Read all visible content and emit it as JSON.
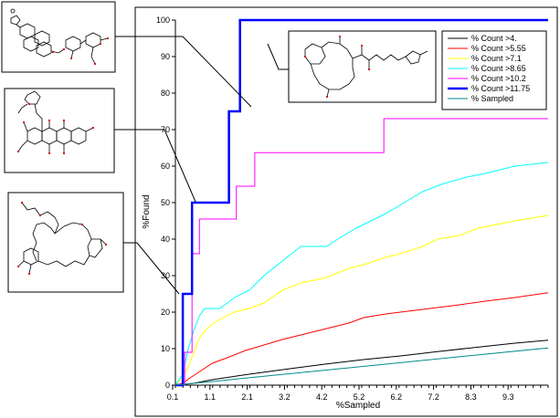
{
  "chart_data": {
    "type": "line",
    "title": "",
    "xlabel": "%Sampled",
    "ylabel": "%Found",
    "xlim": [
      0.1,
      10.2
    ],
    "ylim": [
      0,
      100
    ],
    "x_ticks": [
      "0.1",
      "1.1",
      "2.1",
      "3.2",
      "4.2",
      "5.2",
      "6.2",
      "7.2",
      "8.3",
      "9.3"
    ],
    "y_ticks": [
      0,
      10,
      20,
      30,
      40,
      50,
      60,
      70,
      80,
      90,
      100
    ],
    "legend_position": "top-right, inside plot",
    "grid": false,
    "series": [
      {
        "name": "% Count >4.",
        "color": "#000000",
        "step": false,
        "points": [
          [
            0.1,
            0
          ],
          [
            0.6,
            0.5
          ],
          [
            1.1,
            1.5
          ],
          [
            2.1,
            3
          ],
          [
            3.2,
            4.5
          ],
          [
            4.2,
            5.8
          ],
          [
            5.2,
            7
          ],
          [
            6.2,
            8
          ],
          [
            7.2,
            9.2
          ],
          [
            8.3,
            10.4
          ],
          [
            9.3,
            11.5
          ],
          [
            10.2,
            12.3
          ]
        ]
      },
      {
        "name": "% Count >5.55",
        "color": "#ff0000",
        "step": false,
        "points": [
          [
            0.1,
            0
          ],
          [
            0.3,
            0.5
          ],
          [
            0.5,
            2
          ],
          [
            0.8,
            4
          ],
          [
            1.1,
            6
          ],
          [
            1.5,
            7.5
          ],
          [
            2.0,
            9.5
          ],
          [
            2.5,
            11
          ],
          [
            3.0,
            12.5
          ],
          [
            3.6,
            14
          ],
          [
            4.2,
            15.5
          ],
          [
            4.8,
            17
          ],
          [
            5.2,
            18.5
          ],
          [
            5.8,
            19.5
          ],
          [
            6.2,
            20
          ],
          [
            7.0,
            21
          ],
          [
            7.8,
            22
          ],
          [
            8.5,
            23
          ],
          [
            9.3,
            24
          ],
          [
            10.2,
            25.3
          ]
        ]
      },
      {
        "name": "% Count >7.1",
        "color": "#ffff00",
        "step": false,
        "points": [
          [
            0.1,
            0
          ],
          [
            0.3,
            2
          ],
          [
            0.45,
            5
          ],
          [
            0.6,
            9
          ],
          [
            0.75,
            13
          ],
          [
            1.0,
            16
          ],
          [
            1.3,
            18
          ],
          [
            1.7,
            20
          ],
          [
            2.1,
            21
          ],
          [
            2.5,
            22.5
          ],
          [
            3.0,
            26
          ],
          [
            3.5,
            28
          ],
          [
            4.2,
            29.5
          ],
          [
            4.8,
            32
          ],
          [
            5.2,
            33
          ],
          [
            5.8,
            35
          ],
          [
            6.2,
            36
          ],
          [
            6.8,
            38
          ],
          [
            7.2,
            40
          ],
          [
            7.8,
            41
          ],
          [
            8.3,
            43
          ],
          [
            8.8,
            44
          ],
          [
            9.3,
            45
          ],
          [
            10.2,
            46.5
          ]
        ]
      },
      {
        "name": "% Count >8.65",
        "color": "#00ffff",
        "step": false,
        "points": [
          [
            0.1,
            0
          ],
          [
            0.3,
            3
          ],
          [
            0.45,
            10
          ],
          [
            0.6,
            15
          ],
          [
            0.75,
            19
          ],
          [
            0.9,
            21
          ],
          [
            1.3,
            21
          ],
          [
            1.7,
            24
          ],
          [
            2.1,
            26
          ],
          [
            2.5,
            30
          ],
          [
            3.0,
            34
          ],
          [
            3.5,
            38
          ],
          [
            4.2,
            38
          ],
          [
            4.5,
            40
          ],
          [
            5.0,
            43
          ],
          [
            5.4,
            45
          ],
          [
            5.8,
            47
          ],
          [
            6.3,
            50
          ],
          [
            6.8,
            53
          ],
          [
            7.3,
            55
          ],
          [
            8.0,
            57
          ],
          [
            8.5,
            58
          ],
          [
            9.3,
            60
          ],
          [
            10.2,
            61
          ]
        ]
      },
      {
        "name": "% Count >10.2",
        "color": "#ff00ff",
        "step": true,
        "points": [
          [
            0.1,
            0
          ],
          [
            0.35,
            0
          ],
          [
            0.35,
            9
          ],
          [
            0.55,
            9
          ],
          [
            0.55,
            36
          ],
          [
            0.75,
            36
          ],
          [
            0.75,
            45.5
          ],
          [
            1.75,
            45.5
          ],
          [
            1.75,
            54.5
          ],
          [
            2.25,
            54.5
          ],
          [
            2.25,
            63.7
          ],
          [
            5.75,
            63.7
          ],
          [
            5.75,
            73
          ],
          [
            10.2,
            73
          ]
        ]
      },
      {
        "name": "% Count >11.75",
        "color": "#0000ff",
        "step": true,
        "points": [
          [
            0.1,
            0
          ],
          [
            0.3,
            0
          ],
          [
            0.3,
            25
          ],
          [
            0.55,
            25
          ],
          [
            0.55,
            50
          ],
          [
            1.55,
            50
          ],
          [
            1.55,
            75
          ],
          [
            1.85,
            75
          ],
          [
            1.85,
            100
          ],
          [
            10.2,
            100
          ]
        ]
      },
      {
        "name": "% Sampled",
        "color": "#008b8b",
        "step": false,
        "points": [
          [
            0.1,
            0
          ],
          [
            10.2,
            10.2
          ]
        ]
      }
    ]
  }
}
